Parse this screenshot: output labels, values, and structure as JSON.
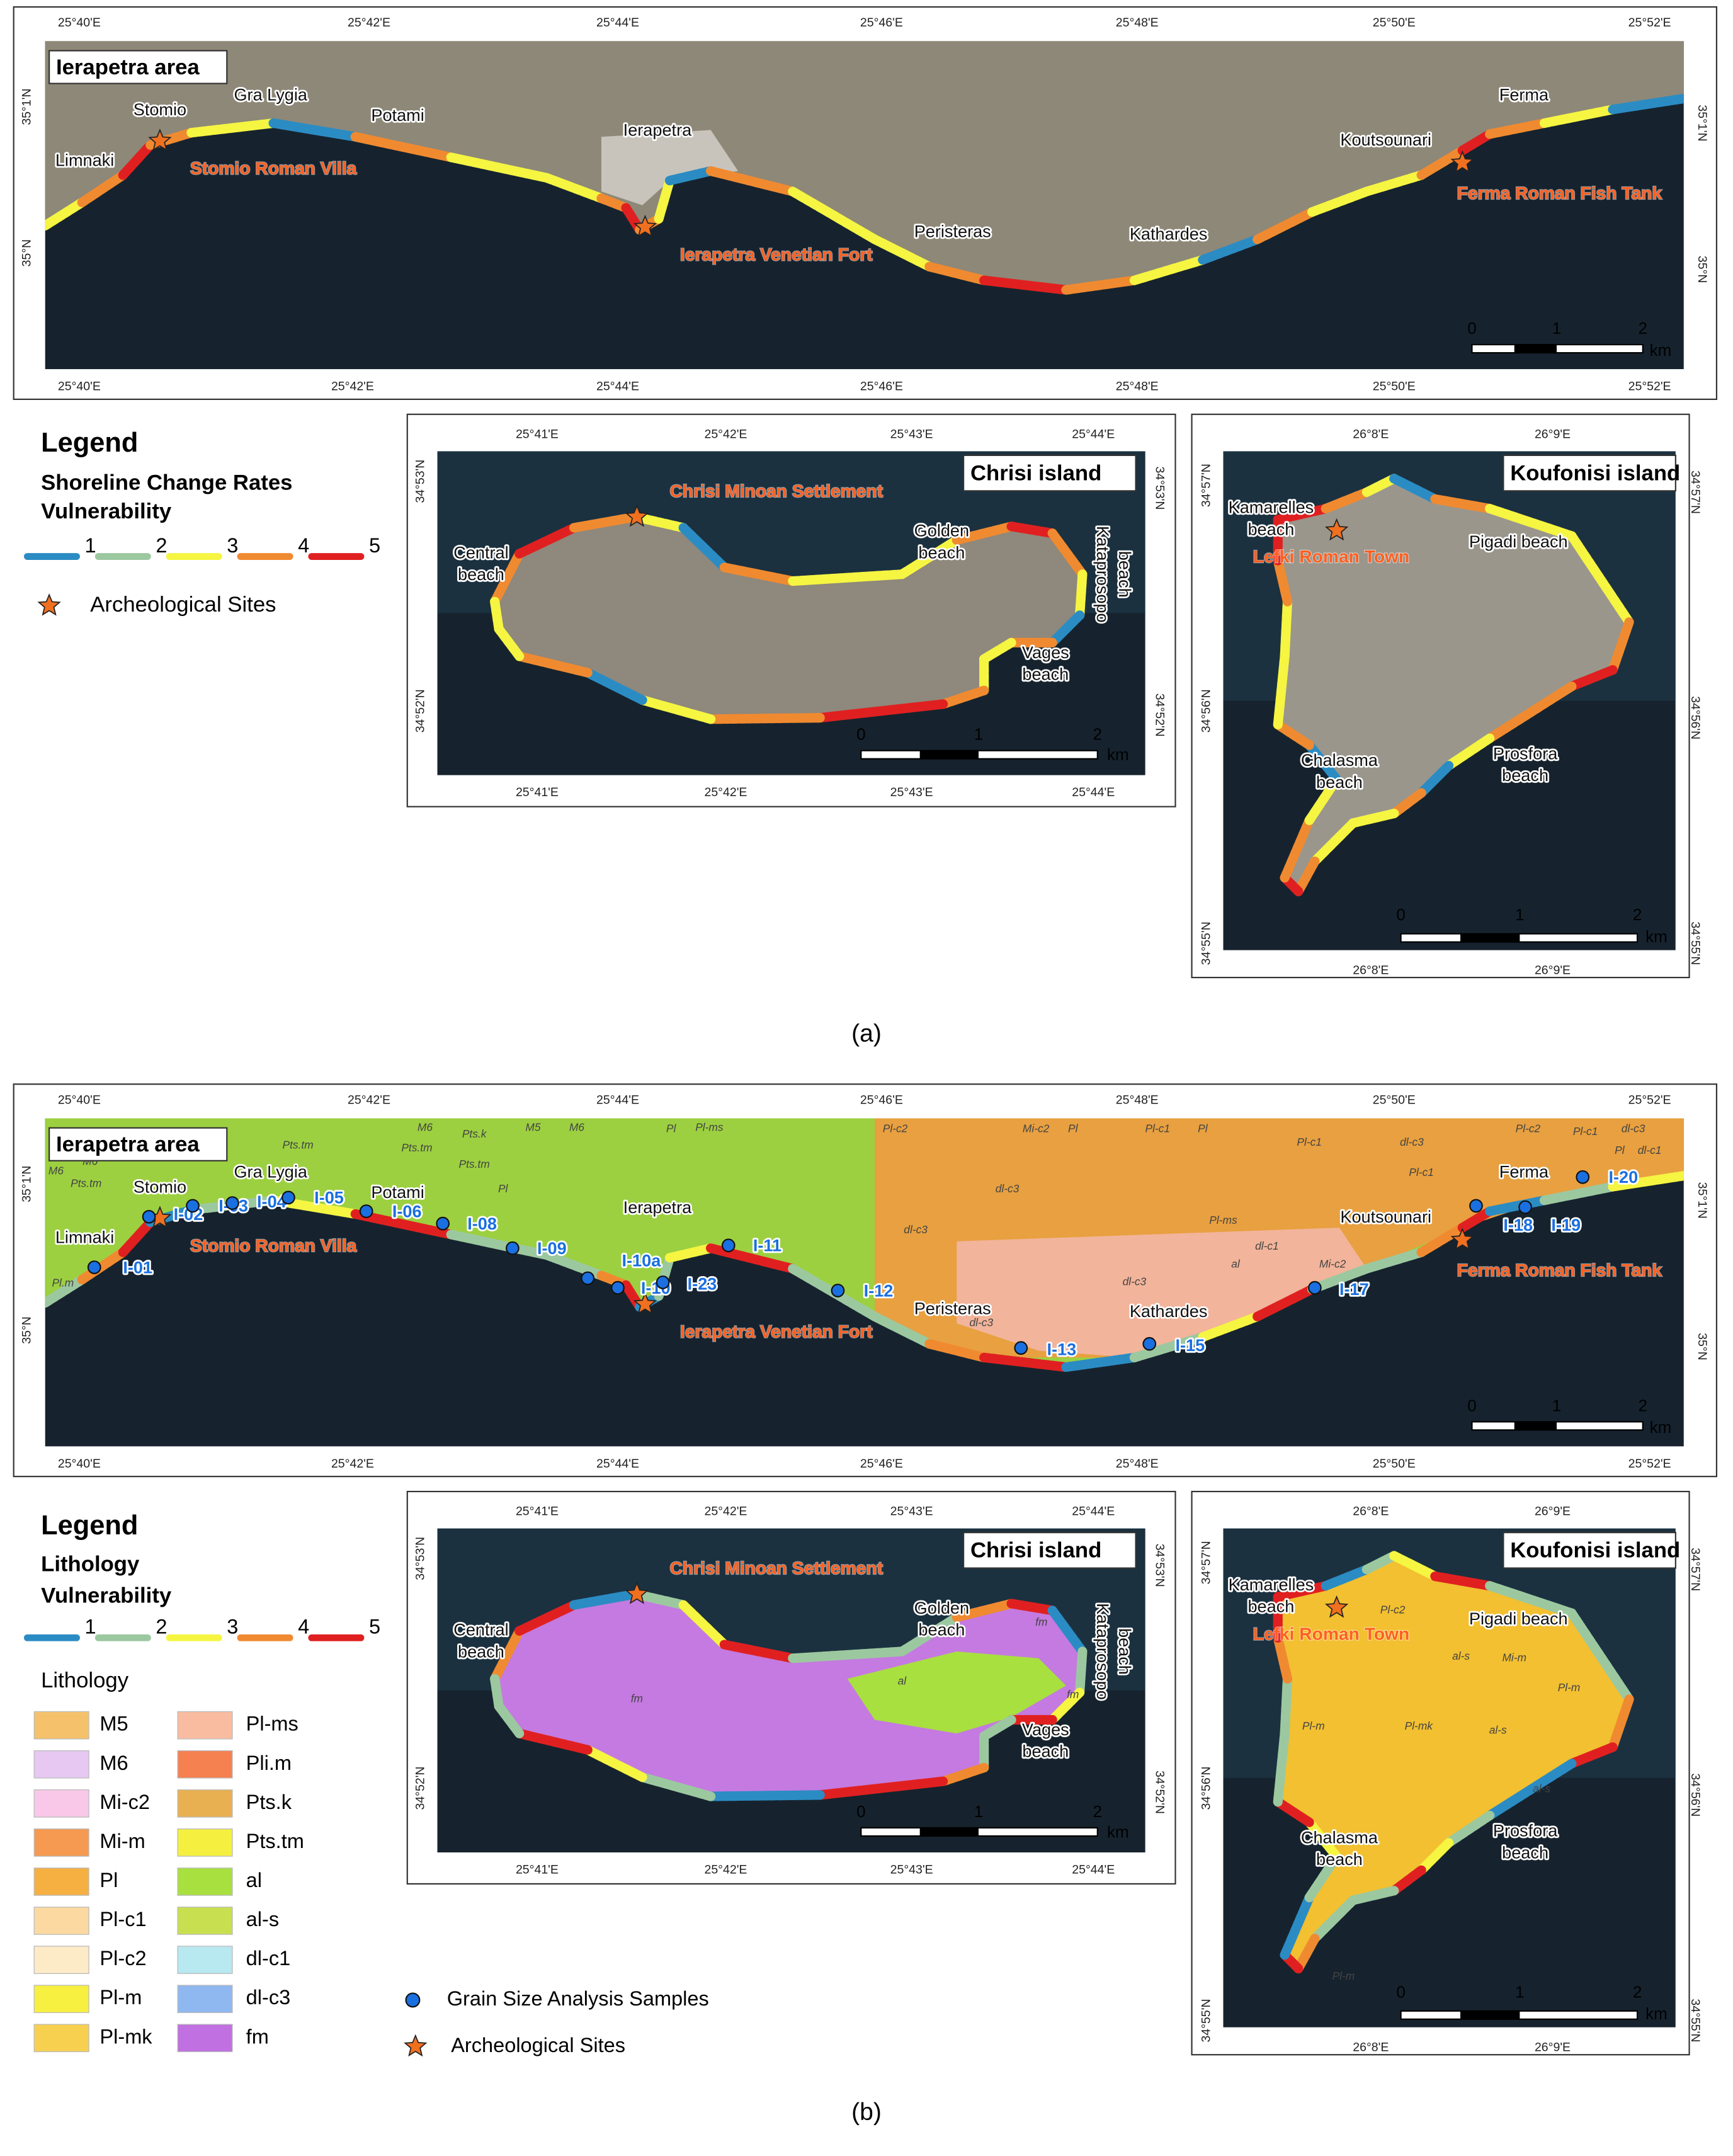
{
  "panel_a": {
    "caption": "(a)",
    "legend": {
      "title": "Legend",
      "subtitle": [
        "Shoreline Change Rates",
        "Vulnerability"
      ],
      "classes": [
        1,
        2,
        3,
        4,
        5
      ],
      "class_colors": [
        "#2b8cc4",
        "#9cc8a0",
        "#f5f542",
        "#f08a30",
        "#e02020"
      ],
      "site_label": "Archeological Sites"
    },
    "maps": [
      {
        "title": "Ierapetra area",
        "top_ticks": [
          "25°40'E",
          "25°42'E",
          "25°44'E",
          "25°46'E",
          "25°48'E",
          "25°50'E",
          "25°52'E"
        ],
        "bottom_ticks": [
          "25°40'E",
          "25°42'E",
          "25°44'E",
          "25°46'E",
          "25°48'E",
          "25°50'E",
          "25°52'E"
        ],
        "left_ticks": [
          "35°1'N",
          "35°N"
        ],
        "right_ticks": [
          "35°1'N",
          "35°N"
        ],
        "places": [
          [
            "Limnaki"
          ],
          [
            "Stomio"
          ],
          [
            "Gra Lygia"
          ],
          [
            "Potami"
          ],
          [
            "Ierapetra"
          ],
          [
            "Peristeras"
          ],
          [
            "Kathardes"
          ],
          [
            "Koutsounari"
          ],
          [
            "Ferma"
          ]
        ],
        "sites": [
          "Stomio Roman Villa",
          "Ierapetra Venetian Fort",
          "Ferma Roman Fish Tank"
        ],
        "scale": [
          0,
          1,
          2
        ],
        "scale_unit": "km"
      },
      {
        "title": "Chrisi island",
        "top_ticks": [
          "25°41'E",
          "25°42'E",
          "25°43'E",
          "25°44'E"
        ],
        "bottom_ticks": [
          "25°41'E",
          "25°42'E",
          "25°43'E",
          "25°44'E"
        ],
        "left_ticks": [
          "34°53'N",
          "34°52'N"
        ],
        "right_ticks": [
          "34°53'N",
          "34°52'N"
        ],
        "places": [
          [
            "Central",
            "beach"
          ],
          [
            "Golden",
            "beach"
          ],
          [
            "Kataprosopo",
            "beach"
          ],
          [
            "Vages",
            "beach"
          ]
        ],
        "sites": [
          "Chrisi Minoan Settlement"
        ],
        "scale": [
          0,
          1,
          2
        ],
        "scale_unit": "km"
      },
      {
        "title": "Koufonisi island",
        "top_ticks": [
          "26°8'E",
          "26°9'E"
        ],
        "bottom_ticks": [
          "26°8'E",
          "26°9'E"
        ],
        "left_ticks": [
          "34°57'N",
          "34°56'N",
          "34°55'N"
        ],
        "right_ticks": [
          "34°57'N",
          "34°56'N",
          "34°55'N"
        ],
        "places": [
          [
            "Kamarelles",
            "beach"
          ],
          [
            "Pigadi beach"
          ],
          [
            "Chalasma",
            "beach"
          ],
          [
            "Prosfora",
            "beach"
          ]
        ],
        "sites": [
          "Lefki Roman Town"
        ],
        "scale": [
          0,
          1,
          2
        ],
        "scale_unit": "km"
      }
    ]
  },
  "panel_b": {
    "caption": "(b)",
    "legend": {
      "title": "Legend",
      "subtitle": [
        "Lithology",
        "Vulnerability"
      ],
      "classes": [
        1,
        2,
        3,
        4,
        5
      ],
      "class_colors": [
        "#2b8cc4",
        "#9cc8a0",
        "#f5f542",
        "#f08a30",
        "#e02020"
      ],
      "lithology_title": "Lithology",
      "lithology": [
        {
          "name": "M5",
          "color": "#f5c26b"
        },
        {
          "name": "M6",
          "color": "#e6c8f2"
        },
        {
          "name": "Mi-c2",
          "color": "#f9c8e8"
        },
        {
          "name": "Mi-m",
          "color": "#f59a50"
        },
        {
          "name": "Pl",
          "color": "#f5b041"
        },
        {
          "name": "Pl-c1",
          "color": "#fbd9a0"
        },
        {
          "name": "Pl-c2",
          "color": "#fdebc8"
        },
        {
          "name": "Pl-m",
          "color": "#f8f040"
        },
        {
          "name": "Pl-mk",
          "color": "#f8d050"
        },
        {
          "name": "Pl-ms",
          "color": "#f9bca0"
        },
        {
          "name": "Pli.m",
          "color": "#f58050"
        },
        {
          "name": "Pts.k",
          "color": "#e8b050"
        },
        {
          "name": "Pts.tm",
          "color": "#f5f040"
        },
        {
          "name": "al",
          "color": "#a8e040"
        },
        {
          "name": "al-s",
          "color": "#c8e050"
        },
        {
          "name": "dl-c1",
          "color": "#b8e8f0"
        },
        {
          "name": "dl-c3",
          "color": "#90b8f0"
        },
        {
          "name": "fm",
          "color": "#c070e0"
        }
      ],
      "sample_label": "Grain Size Analysis Samples",
      "site_label": "Archeological Sites"
    },
    "maps": [
      {
        "title": "Ierapetra area",
        "top_ticks": [
          "25°40'E",
          "25°42'E",
          "25°44'E",
          "25°46'E",
          "25°48'E",
          "25°50'E",
          "25°52'E"
        ],
        "bottom_ticks": [
          "25°40'E",
          "25°42'E",
          "25°44'E",
          "25°46'E",
          "25°48'E",
          "25°50'E",
          "25°52'E"
        ],
        "left_ticks": [
          "35°1'N",
          "35°N"
        ],
        "right_ticks": [
          "35°1'N",
          "35°N"
        ],
        "places": [
          [
            "Limnaki"
          ],
          [
            "Stomio"
          ],
          [
            "Gra Lygia"
          ],
          [
            "Potami"
          ],
          [
            "Ierapetra"
          ],
          [
            "Peristeras"
          ],
          [
            "Kathardes"
          ],
          [
            "Koutsounari"
          ],
          [
            "Ferma"
          ]
        ],
        "sites": [
          "Stomio Roman Villa",
          "Ierapetra Venetian Fort",
          "Ferma Roman Fish Tank"
        ],
        "samples": [
          "I-01",
          "I-02",
          "I-03",
          "I-04",
          "I-05",
          "I-06",
          "I-08",
          "I-09",
          "I-10a",
          "I-10",
          "I-23",
          "I-11",
          "I-12",
          "I-13",
          "I-15",
          "I-17",
          "I-18",
          "I-19",
          "I-20"
        ],
        "lithology_labels": [
          "M6",
          "M6",
          "Pts.tm",
          "Pl.m",
          "Pts.tm",
          "Pts.tm",
          "Pts.k",
          "Pts.tm",
          "M6",
          "M5",
          "M6",
          "Pl",
          "Pl",
          "Pl-ms",
          "Pl-c2",
          "Mi-c2",
          "Pl",
          "Pl-c1",
          "Pl",
          "dl-c3",
          "dl-c3",
          "Pl-ms",
          "dl-c1",
          "dl-c3",
          "al",
          "Mi-c2",
          "Pl-c1",
          "dl-c3",
          "Pl-c1",
          "Pl-c2",
          "Pl-c1",
          "dl-c3",
          "Pl",
          "dl-c1",
          "dl-c3"
        ],
        "scale": [
          0,
          1,
          2
        ],
        "scale_unit": "km"
      },
      {
        "title": "Chrisi island",
        "top_ticks": [
          "25°41'E",
          "25°42'E",
          "25°43'E",
          "25°44'E"
        ],
        "bottom_ticks": [
          "25°41'E",
          "25°42'E",
          "25°43'E",
          "25°44'E"
        ],
        "left_ticks": [
          "34°53'N",
          "34°52'N"
        ],
        "right_ticks": [
          "34°53'N",
          "34°52'N"
        ],
        "places": [
          [
            "Central",
            "beach"
          ],
          [
            "Golden",
            "beach"
          ],
          [
            "Kataprosopo",
            "beach"
          ],
          [
            "Vages",
            "beach"
          ]
        ],
        "sites": [
          "Chrisi Minoan Settlement"
        ],
        "lithology_labels": [
          "fm",
          "al",
          "fm",
          "fm"
        ],
        "scale": [
          0,
          1,
          2
        ],
        "scale_unit": "km"
      },
      {
        "title": "Koufonisi island",
        "top_ticks": [
          "26°8'E",
          "26°9'E"
        ],
        "bottom_ticks": [
          "26°8'E",
          "26°9'E"
        ],
        "left_ticks": [
          "34°57'N",
          "34°56'N",
          "34°55'N"
        ],
        "right_ticks": [
          "34°57'N",
          "34°56'N",
          "34°55'N"
        ],
        "places": [
          [
            "Kamarelles",
            "beach"
          ],
          [
            "Pigadi beach"
          ],
          [
            "Chalasma",
            "beach"
          ],
          [
            "Prosfora",
            "beach"
          ]
        ],
        "sites": [
          "Lefki Roman Town"
        ],
        "lithology_labels": [
          "Pl-c2",
          "al-s",
          "Mi-m",
          "Pl-m",
          "Pl-m",
          "Pl-mk",
          "al-s",
          "al-s",
          "Pl-m"
        ],
        "scale": [
          0,
          1,
          2
        ],
        "scale_unit": "km"
      }
    ]
  }
}
